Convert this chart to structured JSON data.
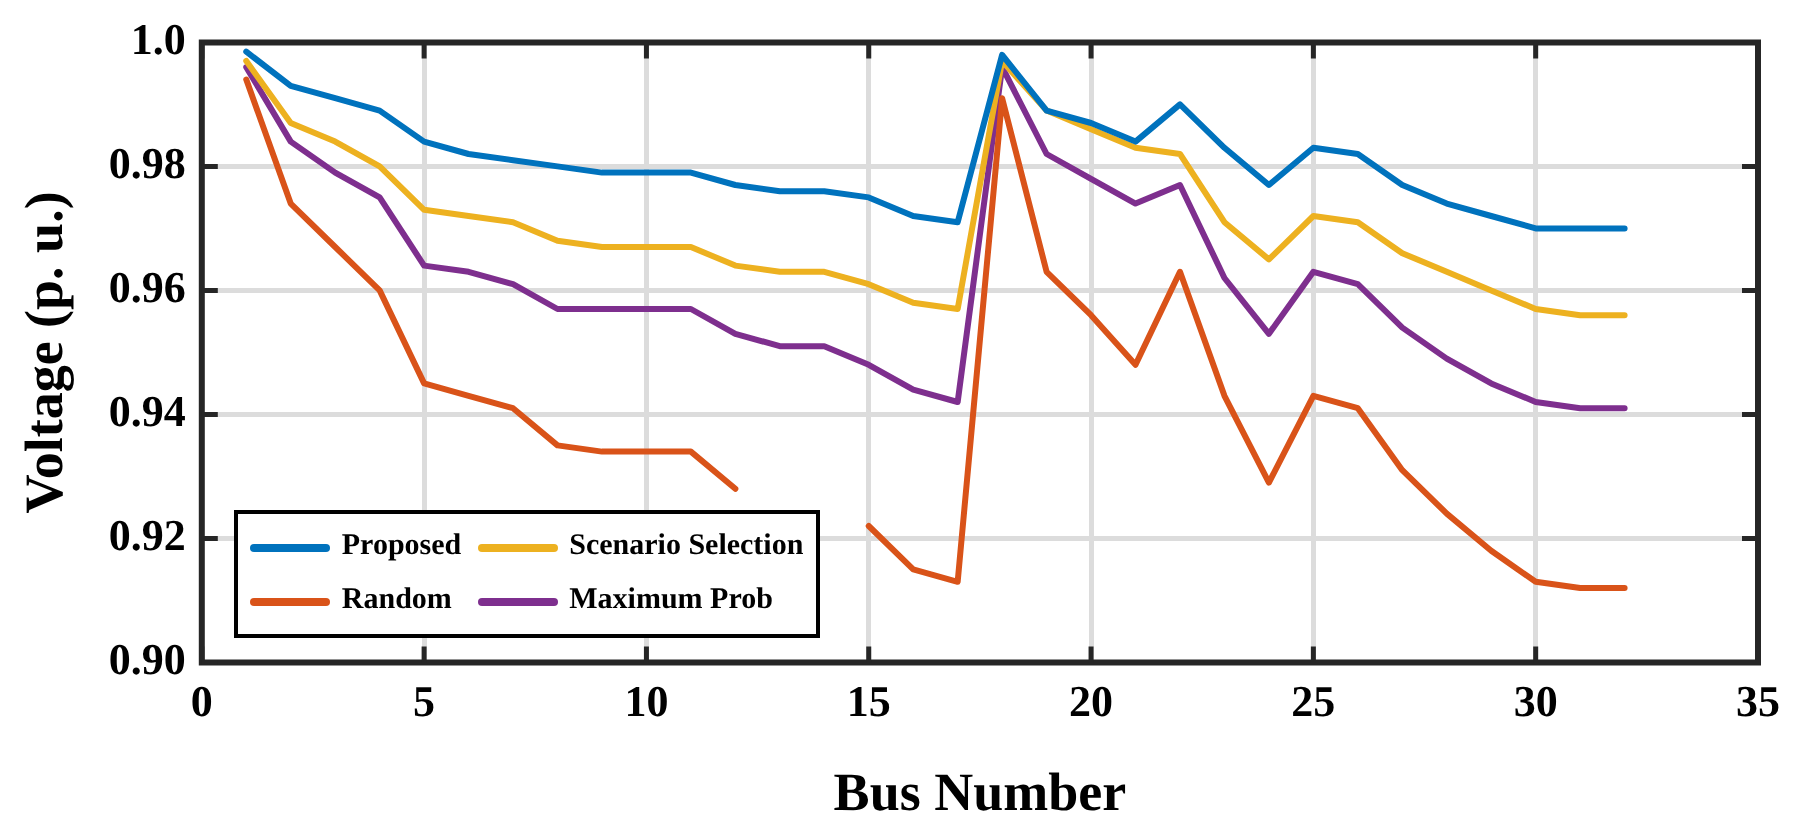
{
  "chart_data": {
    "type": "line",
    "xlabel": "Bus Number",
    "ylabel": "Voltage (p. u.)",
    "x": [
      1,
      2,
      3,
      4,
      5,
      6,
      7,
      8,
      9,
      10,
      11,
      12,
      13,
      14,
      15,
      16,
      17,
      18,
      19,
      20,
      21,
      22,
      23,
      24,
      25,
      26,
      27,
      28,
      29,
      30,
      31,
      32
    ],
    "xlim": [
      0,
      35
    ],
    "xticks": [
      0,
      5,
      10,
      15,
      20,
      25,
      30,
      35
    ],
    "ylim": [
      0.9,
      1.0
    ],
    "yticks": [
      {
        "value": 0.9,
        "label": "0.90"
      },
      {
        "value": 0.92,
        "label": "0.92"
      },
      {
        "value": 0.94,
        "label": "0.94"
      },
      {
        "value": 0.96,
        "label": "0.96"
      },
      {
        "value": 0.98,
        "label": "0.98"
      },
      {
        "value": 1.0,
        "label": "1.0"
      }
    ],
    "grid": true,
    "legend": "bottom left",
    "marker": "none",
    "line_style": "solid",
    "series": [
      {
        "name": "Proposed",
        "color": "#0072bd",
        "values": [
          0.9985,
          0.993,
          0.991,
          0.989,
          0.984,
          0.982,
          0.981,
          0.98,
          0.979,
          0.979,
          0.979,
          0.977,
          0.976,
          0.976,
          0.975,
          0.972,
          0.971,
          0.998,
          0.989,
          0.987,
          0.984,
          0.99,
          0.983,
          0.977,
          0.983,
          0.982,
          0.977,
          0.974,
          0.972,
          0.97,
          0.97,
          0.97
        ]
      },
      {
        "name": "Scenario Selection",
        "color": "#edb120",
        "values": [
          0.997,
          0.987,
          0.984,
          0.98,
          0.973,
          0.972,
          0.971,
          0.968,
          0.967,
          0.967,
          0.967,
          0.964,
          0.963,
          0.963,
          0.961,
          0.958,
          0.957,
          0.997,
          0.989,
          0.986,
          0.983,
          0.982,
          0.971,
          0.965,
          0.972,
          0.971,
          0.966,
          0.963,
          0.96,
          0.957,
          0.956,
          0.956
        ]
      },
      {
        "name": "Random",
        "color": "#d95319",
        "values": [
          0.994,
          0.974,
          0.967,
          0.96,
          0.945,
          0.943,
          0.941,
          0.935,
          0.934,
          0.934,
          0.934,
          0.928,
          null,
          null,
          0.922,
          0.915,
          0.913,
          0.991,
          0.963,
          0.956,
          0.948,
          0.963,
          0.943,
          0.929,
          0.943,
          0.941,
          0.931,
          0.924,
          0.918,
          0.913,
          0.912,
          0.912
        ]
      },
      {
        "name": "Maximum Prob",
        "color": "#7e2f8e",
        "values": [
          0.996,
          0.984,
          0.979,
          0.975,
          0.964,
          0.963,
          0.961,
          0.957,
          0.957,
          0.957,
          0.957,
          0.953,
          0.951,
          0.951,
          0.948,
          0.944,
          0.942,
          0.996,
          0.982,
          0.978,
          0.974,
          0.977,
          0.962,
          0.953,
          0.963,
          0.961,
          0.954,
          0.949,
          0.945,
          0.942,
          0.941,
          0.941
        ]
      }
    ]
  }
}
